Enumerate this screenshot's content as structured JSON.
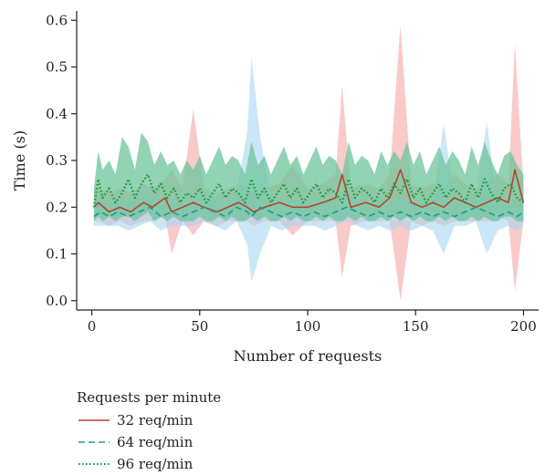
{
  "chart_data": {
    "type": "line",
    "xlabel": "Number of requests",
    "ylabel": "Time (s)",
    "xlim": [
      -7,
      207
    ],
    "ylim": [
      -0.02,
      0.62
    ],
    "xticks": [
      0,
      50,
      100,
      150,
      200
    ],
    "yticks": [
      0.0,
      0.1,
      0.2,
      0.3,
      0.4,
      0.5,
      0.6
    ],
    "ytick_labels": [
      "0.0",
      "0.1",
      "0.2",
      "0.3",
      "0.4",
      "0.5",
      "0.6"
    ],
    "grid": false,
    "legend": {
      "title": "Requests per minute",
      "placement": "below-left"
    },
    "series": [
      {
        "name": "32 req/min",
        "color": "#b5442b",
        "band_color": "#f4a6a6",
        "line_style": "solid",
        "x": [
          1,
          3,
          8,
          13,
          18,
          24,
          28,
          34,
          37,
          42,
          47,
          52,
          58,
          63,
          68,
          72,
          75,
          80,
          87,
          93,
          100,
          107,
          113,
          116,
          120,
          127,
          133,
          138,
          143,
          148,
          153,
          158,
          163,
          168,
          173,
          178,
          183,
          188,
          193,
          196,
          200
        ],
        "y": [
          0.2,
          0.21,
          0.19,
          0.2,
          0.19,
          0.21,
          0.2,
          0.22,
          0.19,
          0.2,
          0.21,
          0.2,
          0.19,
          0.2,
          0.21,
          0.2,
          0.19,
          0.2,
          0.21,
          0.2,
          0.2,
          0.21,
          0.22,
          0.27,
          0.2,
          0.21,
          0.2,
          0.22,
          0.28,
          0.21,
          0.2,
          0.21,
          0.2,
          0.22,
          0.21,
          0.2,
          0.21,
          0.22,
          0.21,
          0.28,
          0.21
        ],
        "lower": [
          0.17,
          0.17,
          0.16,
          0.17,
          0.16,
          0.17,
          0.17,
          0.18,
          0.1,
          0.17,
          0.14,
          0.17,
          0.16,
          0.17,
          0.17,
          0.17,
          0.16,
          0.17,
          0.17,
          0.14,
          0.17,
          0.17,
          0.17,
          0.05,
          0.16,
          0.17,
          0.17,
          0.17,
          0.0,
          0.17,
          0.16,
          0.17,
          0.16,
          0.17,
          0.17,
          0.17,
          0.17,
          0.18,
          0.17,
          0.02,
          0.17
        ],
        "upper": [
          0.24,
          0.24,
          0.23,
          0.24,
          0.23,
          0.25,
          0.24,
          0.26,
          0.28,
          0.24,
          0.41,
          0.24,
          0.23,
          0.24,
          0.25,
          0.24,
          0.23,
          0.24,
          0.25,
          0.29,
          0.24,
          0.25,
          0.27,
          0.46,
          0.24,
          0.25,
          0.24,
          0.27,
          0.59,
          0.25,
          0.24,
          0.25,
          0.24,
          0.27,
          0.25,
          0.24,
          0.25,
          0.27,
          0.25,
          0.55,
          0.25
        ]
      },
      {
        "name": "64 req/min",
        "color": "#1a9e8f",
        "band_color": "#a8d6f0",
        "line_style": "dashed",
        "x": [
          1,
          4,
          8,
          12,
          17,
          22,
          27,
          32,
          37,
          42,
          47,
          52,
          57,
          62,
          67,
          72,
          74,
          78,
          83,
          88,
          93,
          98,
          103,
          108,
          113,
          118,
          123,
          128,
          133,
          138,
          143,
          148,
          153,
          158,
          163,
          168,
          173,
          178,
          183,
          188,
          193,
          197,
          200
        ],
        "y": [
          0.18,
          0.19,
          0.18,
          0.19,
          0.18,
          0.19,
          0.2,
          0.18,
          0.19,
          0.18,
          0.19,
          0.2,
          0.19,
          0.18,
          0.2,
          0.19,
          0.18,
          0.2,
          0.19,
          0.18,
          0.19,
          0.18,
          0.19,
          0.18,
          0.19,
          0.2,
          0.19,
          0.18,
          0.19,
          0.18,
          0.19,
          0.18,
          0.19,
          0.18,
          0.19,
          0.18,
          0.19,
          0.2,
          0.19,
          0.18,
          0.19,
          0.18,
          0.19
        ],
        "lower": [
          0.16,
          0.16,
          0.16,
          0.16,
          0.15,
          0.16,
          0.17,
          0.15,
          0.16,
          0.16,
          0.16,
          0.17,
          0.16,
          0.15,
          0.17,
          0.12,
          0.04,
          0.1,
          0.16,
          0.15,
          0.16,
          0.16,
          0.16,
          0.15,
          0.16,
          0.17,
          0.16,
          0.15,
          0.16,
          0.15,
          0.16,
          0.15,
          0.16,
          0.15,
          0.1,
          0.16,
          0.16,
          0.17,
          0.1,
          0.15,
          0.16,
          0.15,
          0.16
        ],
        "upper": [
          0.21,
          0.22,
          0.21,
          0.22,
          0.21,
          0.22,
          0.23,
          0.21,
          0.22,
          0.21,
          0.22,
          0.23,
          0.22,
          0.21,
          0.23,
          0.36,
          0.52,
          0.35,
          0.22,
          0.21,
          0.22,
          0.21,
          0.22,
          0.21,
          0.22,
          0.23,
          0.22,
          0.21,
          0.22,
          0.21,
          0.22,
          0.21,
          0.22,
          0.21,
          0.38,
          0.22,
          0.22,
          0.23,
          0.38,
          0.21,
          0.22,
          0.21,
          0.22
        ]
      },
      {
        "name": "96 req/min",
        "color": "#1e9a3c",
        "band_color": "#6cc49a",
        "line_style": "dotted",
        "x": [
          1,
          3,
          5,
          8,
          11,
          14,
          17,
          20,
          23,
          26,
          29,
          32,
          35,
          38,
          41,
          44,
          47,
          50,
          53,
          56,
          59,
          62,
          65,
          68,
          71,
          74,
          77,
          80,
          83,
          86,
          89,
          92,
          95,
          98,
          101,
          104,
          107,
          110,
          113,
          116,
          119,
          122,
          125,
          128,
          131,
          134,
          137,
          140,
          143,
          146,
          149,
          152,
          155,
          158,
          161,
          164,
          167,
          170,
          173,
          176,
          179,
          182,
          185,
          188,
          191,
          194,
          197,
          200
        ],
        "y": [
          0.2,
          0.26,
          0.22,
          0.24,
          0.21,
          0.23,
          0.26,
          0.22,
          0.25,
          0.27,
          0.23,
          0.25,
          0.22,
          0.24,
          0.21,
          0.23,
          0.22,
          0.24,
          0.21,
          0.23,
          0.25,
          0.22,
          0.24,
          0.23,
          0.21,
          0.26,
          0.22,
          0.24,
          0.21,
          0.23,
          0.25,
          0.22,
          0.24,
          0.21,
          0.23,
          0.25,
          0.22,
          0.24,
          0.23,
          0.21,
          0.26,
          0.22,
          0.24,
          0.23,
          0.21,
          0.24,
          0.22,
          0.25,
          0.23,
          0.26,
          0.22,
          0.24,
          0.21,
          0.23,
          0.25,
          0.22,
          0.24,
          0.23,
          0.21,
          0.25,
          0.22,
          0.26,
          0.23,
          0.21,
          0.24,
          0.25,
          0.22,
          0.21
        ],
        "lower": [
          0.17,
          0.18,
          0.17,
          0.18,
          0.17,
          0.18,
          0.18,
          0.17,
          0.18,
          0.19,
          0.17,
          0.18,
          0.17,
          0.18,
          0.17,
          0.17,
          0.17,
          0.18,
          0.17,
          0.17,
          0.18,
          0.17,
          0.18,
          0.17,
          0.17,
          0.18,
          0.17,
          0.18,
          0.17,
          0.17,
          0.18,
          0.17,
          0.18,
          0.17,
          0.17,
          0.18,
          0.17,
          0.18,
          0.17,
          0.17,
          0.18,
          0.17,
          0.18,
          0.17,
          0.17,
          0.18,
          0.17,
          0.18,
          0.17,
          0.18,
          0.17,
          0.18,
          0.17,
          0.17,
          0.18,
          0.17,
          0.18,
          0.17,
          0.17,
          0.18,
          0.17,
          0.18,
          0.17,
          0.17,
          0.18,
          0.18,
          0.17,
          0.17
        ],
        "upper": [
          0.24,
          0.32,
          0.28,
          0.3,
          0.27,
          0.35,
          0.33,
          0.28,
          0.36,
          0.34,
          0.29,
          0.32,
          0.29,
          0.3,
          0.27,
          0.3,
          0.28,
          0.31,
          0.27,
          0.3,
          0.33,
          0.29,
          0.31,
          0.3,
          0.27,
          0.34,
          0.29,
          0.31,
          0.27,
          0.3,
          0.33,
          0.29,
          0.31,
          0.27,
          0.3,
          0.33,
          0.29,
          0.31,
          0.3,
          0.27,
          0.34,
          0.29,
          0.31,
          0.3,
          0.27,
          0.32,
          0.29,
          0.32,
          0.3,
          0.34,
          0.29,
          0.32,
          0.27,
          0.3,
          0.33,
          0.29,
          0.32,
          0.3,
          0.27,
          0.33,
          0.29,
          0.34,
          0.3,
          0.27,
          0.31,
          0.32,
          0.29,
          0.27
        ]
      }
    ]
  }
}
